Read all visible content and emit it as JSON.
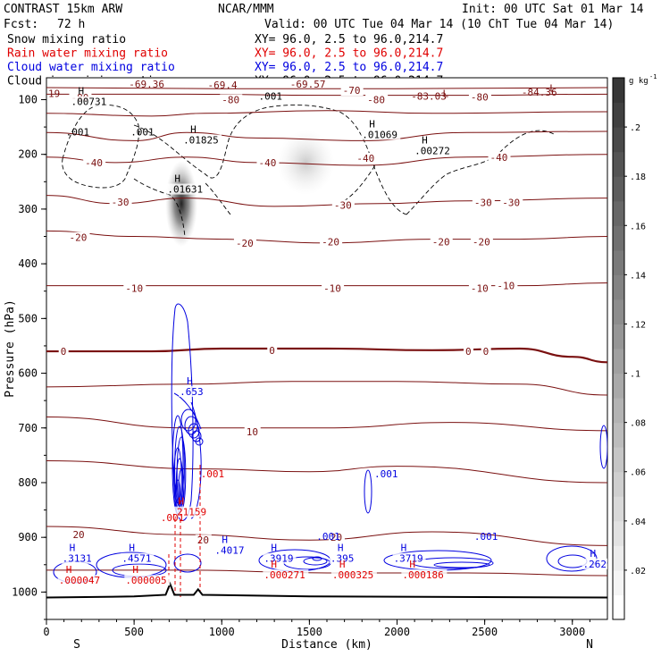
{
  "header": {
    "model": "CONTRAST 15km ARW",
    "org": "NCAR/MMM",
    "init": "Init: 00 UTC Sat 01 Mar 14",
    "fcst_label": "Fcst:",
    "fcst_value": "72 h",
    "valid": "Valid: 00 UTC Tue 04 Mar 14 (10 ChT Tue 04 Mar 14)",
    "fields": [
      {
        "name": "Snow mixing ratio",
        "xy": "XY=  96.0,  2.5 to  96.0,214.7",
        "color": "#000000"
      },
      {
        "name": "Rain water mixing ratio",
        "xy": "XY=  96.0,  2.5 to  96.0,214.7",
        "color": "#e00000"
      },
      {
        "name": "Cloud water mixing ratio",
        "xy": "XY=  96.0,  2.5 to  96.0,214.7",
        "color": "#0000e0"
      },
      {
        "name": "Cloud ice mixing ratio",
        "xy": "XY=  96.0,  2.5 to  96.0,214.7",
        "color": "#000000"
      }
    ]
  },
  "chart_data": {
    "type": "heatmap",
    "title": "Vertical cross section",
    "xlabel": "Distance (km)",
    "ylabel": "Pressure (hPa)",
    "xlim": [
      0,
      3200
    ],
    "ylim": [
      1050,
      60
    ],
    "x_ticks": [
      0,
      500,
      1000,
      1500,
      2000,
      2500,
      3000
    ],
    "y_ticks": [
      100,
      200,
      300,
      400,
      500,
      600,
      700,
      800,
      900,
      1000
    ],
    "end_labels": {
      "left": "S",
      "right": "N"
    },
    "colorbar": {
      "unit": "g kg",
      "unit_exp": "-1",
      "ticks": [
        ".02",
        ".04",
        ".06",
        ".08",
        ".1",
        ".12",
        ".14",
        ".16",
        ".18",
        ".2"
      ],
      "tick_values": [
        0.02,
        0.04,
        0.06,
        0.08,
        0.1,
        0.12,
        0.14,
        0.16,
        0.18,
        0.2
      ],
      "max": 0.22
    },
    "snow_maxima": [
      {
        "x": 770,
        "p": 290,
        "value": 0.16
      },
      {
        "x": 1480,
        "p": 215,
        "value": 0.06
      }
    ],
    "temperature_contours": [
      {
        "level": -80,
        "color": "#7a1010",
        "bold": false,
        "points": [
          [
            0,
            90
          ],
          [
            800,
            90
          ],
          [
            1600,
            92
          ],
          [
            2400,
            92
          ],
          [
            3200,
            90
          ]
        ],
        "labels": [
          {
            "x": 140,
            "p": 96,
            "text": "-80"
          },
          {
            "x": 1000,
            "p": 100,
            "text": "-80"
          },
          {
            "x": 1830,
            "p": 100,
            "text": "-80"
          },
          {
            "x": 2420,
            "p": 95,
            "text": "-80"
          }
        ]
      },
      {
        "level": -70,
        "color": "#7a1010",
        "bold": false,
        "points": [
          [
            0,
            78
          ],
          [
            1000,
            80
          ],
          [
            2000,
            80
          ],
          [
            3200,
            78
          ]
        ],
        "labels": [
          {
            "x": 1690,
            "p": 83,
            "text": "-70"
          }
        ]
      },
      {
        "level": -60,
        "color": "#7a1010",
        "bold": false,
        "points": [
          [
            0,
            125
          ],
          [
            600,
            130
          ],
          [
            900,
            125
          ],
          [
            1600,
            120
          ],
          [
            2200,
            125
          ],
          [
            3200,
            122
          ]
        ],
        "labels": []
      },
      {
        "level": -50,
        "color": "#7a1010",
        "bold": false,
        "points": [
          [
            0,
            160
          ],
          [
            500,
            175
          ],
          [
            800,
            160
          ],
          [
            1200,
            170
          ],
          [
            1800,
            175
          ],
          [
            2400,
            160
          ],
          [
            3200,
            158
          ]
        ],
        "labels": []
      },
      {
        "level": -40,
        "color": "#7a1010",
        "bold": false,
        "points": [
          [
            0,
            205
          ],
          [
            400,
            215
          ],
          [
            800,
            205
          ],
          [
            1200,
            215
          ],
          [
            1800,
            220
          ],
          [
            2400,
            205
          ],
          [
            3200,
            200
          ]
        ],
        "labels": [
          {
            "x": 220,
            "p": 215,
            "text": "-40"
          },
          {
            "x": 1210,
            "p": 215,
            "text": "-40"
          },
          {
            "x": 1770,
            "p": 207,
            "text": "-40"
          },
          {
            "x": 2530,
            "p": 205,
            "text": "-40"
          }
        ]
      },
      {
        "level": -30,
        "color": "#7a1010",
        "bold": false,
        "points": [
          [
            0,
            275
          ],
          [
            400,
            290
          ],
          [
            800,
            280
          ],
          [
            1300,
            295
          ],
          [
            1900,
            290
          ],
          [
            2400,
            285
          ],
          [
            3200,
            280
          ]
        ],
        "labels": [
          {
            "x": 370,
            "p": 287,
            "text": "-30"
          },
          {
            "x": 1640,
            "p": 293,
            "text": "-30"
          },
          {
            "x": 2440,
            "p": 288,
            "text": "-30"
          },
          {
            "x": 2600,
            "p": 288,
            "text": "-30"
          }
        ]
      },
      {
        "level": -20,
        "color": "#7a1010",
        "bold": false,
        "points": [
          [
            0,
            340
          ],
          [
            500,
            350
          ],
          [
            1000,
            355
          ],
          [
            1600,
            362
          ],
          [
            2200,
            355
          ],
          [
            2700,
            355
          ],
          [
            3200,
            350
          ]
        ],
        "labels": [
          {
            "x": 130,
            "p": 352,
            "text": "-20"
          },
          {
            "x": 1080,
            "p": 362,
            "text": "-20"
          },
          {
            "x": 1570,
            "p": 360,
            "text": "-20"
          },
          {
            "x": 2200,
            "p": 360,
            "text": "-20"
          },
          {
            "x": 2430,
            "p": 360,
            "text": "-20"
          }
        ]
      },
      {
        "level": -10,
        "color": "#7a1010",
        "bold": false,
        "points": [
          [
            0,
            440
          ],
          [
            500,
            440
          ],
          [
            1000,
            440
          ],
          [
            1600,
            440
          ],
          [
            2200,
            440
          ],
          [
            2700,
            440
          ],
          [
            3200,
            435
          ]
        ],
        "labels": [
          {
            "x": 450,
            "p": 445,
            "text": "-10"
          },
          {
            "x": 1580,
            "p": 445,
            "text": "-10"
          },
          {
            "x": 2420,
            "p": 445,
            "text": "-10"
          },
          {
            "x": 2570,
            "p": 440,
            "text": "-10"
          }
        ]
      },
      {
        "level": 0,
        "color": "#7a1010",
        "bold": true,
        "points": [
          [
            0,
            560
          ],
          [
            600,
            560
          ],
          [
            1000,
            555
          ],
          [
            1600,
            555
          ],
          [
            2200,
            558
          ],
          [
            2700,
            555
          ],
          [
            3000,
            570
          ],
          [
            3200,
            580
          ]
        ],
        "labels": [
          {
            "x": 80,
            "p": 560,
            "text": "0"
          },
          {
            "x": 1270,
            "p": 558,
            "text": "0"
          },
          {
            "x": 2390,
            "p": 560,
            "text": "0"
          },
          {
            "x": 2490,
            "p": 560,
            "text": "0"
          }
        ]
      },
      {
        "level": 5,
        "color": "#7a1010",
        "bold": false,
        "points": [
          [
            0,
            625
          ],
          [
            800,
            620
          ],
          [
            1400,
            615
          ],
          [
            2000,
            615
          ],
          [
            2700,
            620
          ],
          [
            3200,
            640
          ]
        ],
        "labels": []
      },
      {
        "level": 10,
        "color": "#7a1010",
        "bold": false,
        "points": [
          [
            0,
            680
          ],
          [
            800,
            700
          ],
          [
            1600,
            700
          ],
          [
            2300,
            690
          ],
          [
            3200,
            705
          ]
        ],
        "labels": [
          {
            "x": 1140,
            "p": 707,
            "text": "10"
          }
        ]
      },
      {
        "level": 15,
        "color": "#7a1010",
        "bold": false,
        "points": [
          [
            0,
            760
          ],
          [
            900,
            775
          ],
          [
            1500,
            780
          ],
          [
            2000,
            770
          ],
          [
            3200,
            800
          ]
        ],
        "labels": []
      },
      {
        "level": 20,
        "color": "#7a1010",
        "bold": false,
        "points": [
          [
            0,
            880
          ],
          [
            800,
            895
          ],
          [
            1500,
            905
          ],
          [
            2200,
            890
          ],
          [
            3200,
            915
          ]
        ],
        "labels": [
          {
            "x": 150,
            "p": 895,
            "text": "20"
          },
          {
            "x": 860,
            "p": 905,
            "text": "20"
          },
          {
            "x": 1620,
            "p": 900,
            "text": "20"
          }
        ]
      },
      {
        "level": 25,
        "color": "#7a1010",
        "bold": false,
        "points": [
          [
            0,
            960
          ],
          [
            800,
            960
          ],
          [
            1600,
            965
          ],
          [
            2400,
            965
          ],
          [
            3200,
            970
          ]
        ],
        "labels": []
      }
    ],
    "surface": {
      "color": "#000000",
      "points": [
        [
          0,
          1010
        ],
        [
          500,
          1008
        ],
        [
          680,
          1005
        ],
        [
          705,
          985
        ],
        [
          730,
          1005
        ],
        [
          840,
          1005
        ],
        [
          865,
          995
        ],
        [
          890,
          1005
        ],
        [
          1500,
          1008
        ],
        [
          3200,
          1010
        ]
      ]
    },
    "cloud_ice_maxima": [
      {
        "x": 140,
        "p": 110,
        "text": ".00731"
      },
      {
        "x": 780,
        "p": 180,
        "text": ".01825"
      },
      {
        "x": 1800,
        "p": 170,
        "text": ".01069"
      },
      {
        "x": 2100,
        "p": 200,
        "text": ".00272"
      },
      {
        "x": 690,
        "p": 270,
        "text": ".01631"
      }
    ],
    "cloud_water_maxima": [
      {
        "x": 760,
        "p": 640,
        "text": ".653"
      },
      {
        "x": 90,
        "p": 945,
        "text": ".3131"
      },
      {
        "x": 430,
        "p": 945,
        "text": ".4571"
      },
      {
        "x": 960,
        "p": 930,
        "text": ".4017"
      },
      {
        "x": 1240,
        "p": 945,
        "text": ".3919"
      },
      {
        "x": 1620,
        "p": 945,
        "text": ".395"
      },
      {
        "x": 1980,
        "p": 945,
        "text": ".3719"
      },
      {
        "x": 3060,
        "p": 955,
        "text": ".2629"
      }
    ],
    "rain_maxima": [
      {
        "x": 710,
        "p": 860,
        "text": ".21159"
      },
      {
        "x": 70,
        "p": 985,
        "text": ".000047"
      },
      {
        "x": 450,
        "p": 985,
        "text": ".000005"
      },
      {
        "x": 1240,
        "p": 975,
        "text": ".000271"
      },
      {
        "x": 1630,
        "p": 975,
        "text": ".000325"
      },
      {
        "x": 2030,
        "p": 975,
        "text": ".000186"
      }
    ],
    "rain_minor": [
      ".001",
      ".001"
    ],
    "other_labels": [
      {
        "x": 10,
        "p": 95,
        "text": "19",
        "color": "#7a1010"
      },
      {
        "x": 470,
        "p": 78,
        "text": "-69.36",
        "color": "#7a1010"
      },
      {
        "x": 920,
        "p": 80,
        "text": "-69.4",
        "color": "#7a1010"
      },
      {
        "x": 1390,
        "p": 78,
        "text": "-69.57",
        "color": "#7a1010"
      },
      {
        "x": 2080,
        "p": 100,
        "text": "-83.03",
        "color": "#7a1010"
      },
      {
        "x": 2710,
        "p": 93,
        "text": "-84.36",
        "color": "#7a1010"
      },
      {
        "x": 1210,
        "p": 100,
        "text": ".001",
        "color": "#000000"
      },
      {
        "x": 110,
        "p": 165,
        "text": ".001",
        "color": "#000000"
      },
      {
        "x": 480,
        "p": 165,
        "text": ".001",
        "color": "#000000"
      },
      {
        "x": 1870,
        "p": 790,
        "text": ".001",
        "color": "#0000e0"
      },
      {
        "x": 1540,
        "p": 905,
        "text": ".001",
        "color": "#0000e0"
      },
      {
        "x": 2440,
        "p": 905,
        "text": ".001",
        "color": "#0000e0"
      }
    ]
  }
}
